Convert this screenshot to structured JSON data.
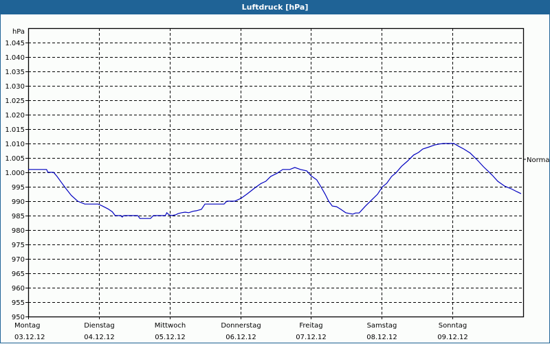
{
  "window": {
    "title": "Luftdruck [hPa]"
  },
  "chart_data": {
    "type": "line",
    "title": "Luftdruck [hPa]",
    "ylabel": "hPa",
    "xlabel": "",
    "ylim": [
      950,
      1045
    ],
    "yticks": [
      950,
      955,
      960,
      965,
      970,
      975,
      980,
      985,
      990,
      995,
      1000,
      1005,
      1010,
      1015,
      1020,
      1025,
      1030,
      1035,
      1040,
      1045
    ],
    "ytick_labels": [
      "950",
      "955",
      "960",
      "965",
      "970",
      "975",
      "980",
      "985",
      "990",
      "995",
      "1.000",
      "1.005",
      "1.010",
      "1.015",
      "1.020",
      "1.025",
      "1.030",
      "1.035",
      "1.040",
      "1.045"
    ],
    "categories": [
      {
        "day": "Montag",
        "date": "03.12.12"
      },
      {
        "day": "Dienstag",
        "date": "04.12.12"
      },
      {
        "day": "Mittwoch",
        "date": "05.12.12"
      },
      {
        "day": "Donnerstag",
        "date": "06.12.12"
      },
      {
        "day": "Freitag",
        "date": "07.12.12"
      },
      {
        "day": "Samstag",
        "date": "08.12.12"
      },
      {
        "day": "Sonntag",
        "date": "09.12.12"
      }
    ],
    "grid": true,
    "reference_line": {
      "label": "Normal",
      "value": 1005
    },
    "series": [
      {
        "name": "Luftdruck",
        "color": "#0000c0",
        "x_days": [
          0.0,
          0.26,
          0.28,
          0.36,
          0.41,
          0.47,
          0.53,
          0.61,
          0.7,
          0.8,
          0.99,
          1.05,
          1.13,
          1.19,
          1.23,
          1.31,
          1.33,
          1.35,
          1.55,
          1.58,
          1.73,
          1.77,
          1.94,
          1.96,
          1.99,
          2.03,
          2.09,
          2.12,
          2.17,
          2.22,
          2.27,
          2.33,
          2.38,
          2.45,
          2.5,
          2.77,
          2.81,
          2.92,
          3.01,
          3.1,
          3.2,
          3.29,
          3.36,
          3.43,
          3.52,
          3.6,
          3.7,
          3.77,
          3.85,
          3.94,
          4.0,
          4.08,
          4.14,
          4.2,
          4.25,
          4.3,
          4.36,
          4.42,
          4.49,
          4.55,
          4.59,
          4.63,
          4.68,
          4.77,
          4.86,
          4.94,
          5.01,
          5.07,
          5.14,
          5.2,
          5.28,
          5.36,
          5.45,
          5.52,
          5.58,
          5.67,
          5.75,
          5.81,
          5.87,
          5.95,
          6.02,
          6.09,
          6.16,
          6.25,
          6.35,
          6.44,
          6.5,
          6.57,
          6.64,
          6.74,
          6.83,
          6.91,
          6.97
        ],
        "values": [
          1001,
          1001,
          1000,
          1000,
          998.5,
          996.5,
          994.5,
          992,
          990,
          989,
          989,
          988.3,
          987.3,
          986.3,
          985,
          985,
          984.5,
          985,
          985,
          984,
          984,
          985,
          985,
          986,
          985.3,
          985,
          985.3,
          985.7,
          986,
          986.2,
          986,
          986.5,
          986.7,
          987.2,
          989,
          989,
          990,
          990,
          991,
          992.6,
          994.5,
          996.1,
          996.9,
          998.6,
          999.7,
          1001,
          1001,
          1001.7,
          1001,
          1000.5,
          998.8,
          997.4,
          995,
          992.4,
          990,
          988.3,
          988.1,
          987.2,
          986,
          985.7,
          985.5,
          985.9,
          985.9,
          988.3,
          990.5,
          992.4,
          995,
          996.2,
          998.6,
          999.8,
          1002.1,
          1003.8,
          1006,
          1006.9,
          1008.1,
          1008.8,
          1009.5,
          1009.8,
          1010,
          1010,
          1010,
          1009,
          1008.1,
          1006.7,
          1004.3,
          1001.9,
          1000.5,
          998.8,
          996.9,
          995.2,
          994.3,
          993.3,
          992.6
        ]
      }
    ]
  }
}
